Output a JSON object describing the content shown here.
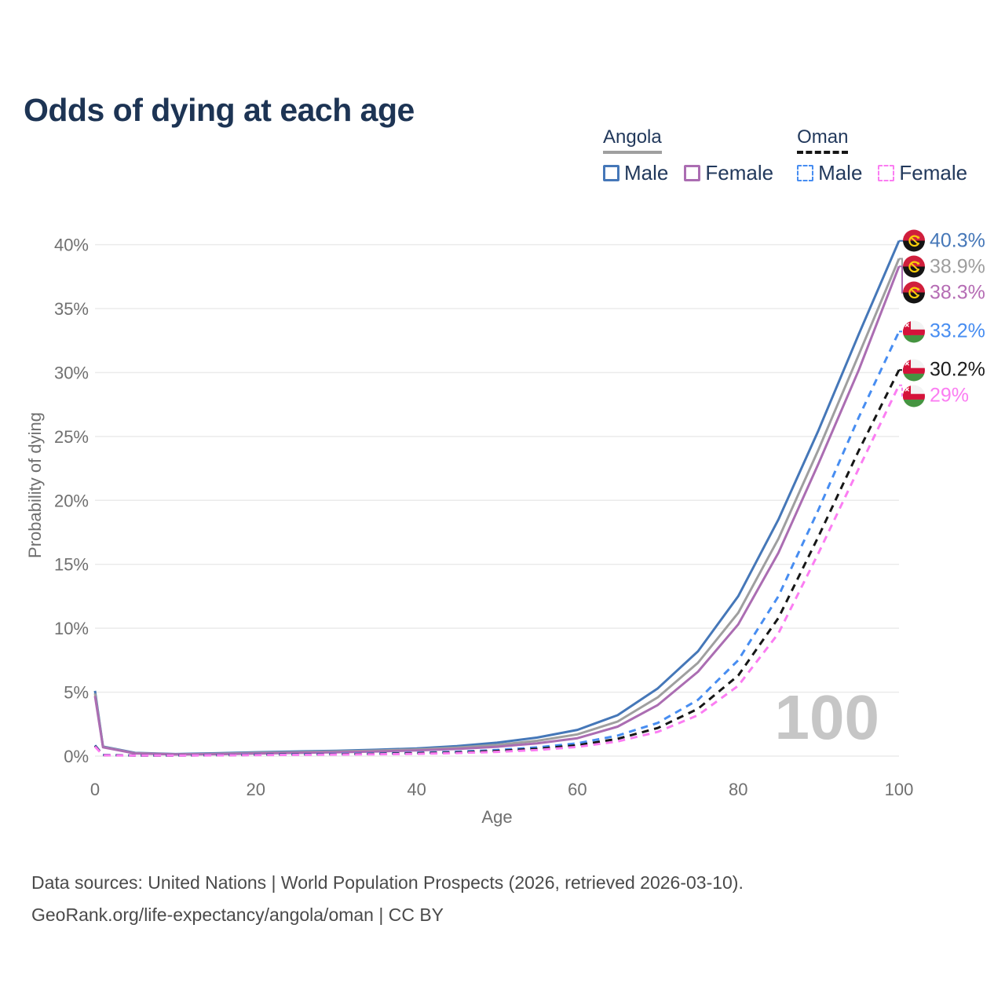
{
  "page": {
    "title": "Odds of dying at each age",
    "watermark": "100",
    "footer_line1": "Data sources: United Nations | World Population Prospects (2026, retrieved 2026-03-10).",
    "footer_line2": "GeoRank.org/life-expectancy/angola/oman | CC BY"
  },
  "legend": {
    "groups": [
      {
        "country": "Angola",
        "line_style": "solid",
        "line_color": "#9f9f9f",
        "items": [
          {
            "label": "Male",
            "color": "#4577b8"
          },
          {
            "label": "Female",
            "color": "#ab6db2"
          }
        ]
      },
      {
        "country": "Oman",
        "line_style": "dashed",
        "line_color": "#161616",
        "items": [
          {
            "label": "Male",
            "color": "#478df1"
          },
          {
            "label": "Female",
            "color": "#fb7df2"
          }
        ]
      }
    ]
  },
  "chart_data": {
    "type": "line",
    "title": "Odds of dying at each age",
    "xlabel": "Age",
    "ylabel": "Probability of dying",
    "xlim": [
      0,
      100
    ],
    "ylim": [
      0,
      40
    ],
    "x_ticks": [
      0,
      20,
      40,
      60,
      80,
      100
    ],
    "y_ticks": [
      0,
      5,
      10,
      15,
      20,
      25,
      30,
      35,
      40
    ],
    "y_tick_suffix": "%",
    "grid": "horizontal",
    "legend_position": "top-right",
    "x": [
      0,
      1,
      5,
      10,
      15,
      20,
      25,
      30,
      35,
      40,
      45,
      50,
      55,
      60,
      65,
      70,
      75,
      80,
      85,
      90,
      95,
      100
    ],
    "series": [
      {
        "name": "Angola Male",
        "country": "Angola",
        "style": "solid",
        "dash": false,
        "flag": "angola",
        "color": "#4577b8",
        "label_color": "#4577b8",
        "end_label": "40.3%",
        "values": [
          5.1,
          0.75,
          0.25,
          0.16,
          0.22,
          0.3,
          0.36,
          0.42,
          0.5,
          0.6,
          0.78,
          1.05,
          1.45,
          2.05,
          3.2,
          5.3,
          8.2,
          12.5,
          18.5,
          25.5,
          33.0,
          40.3
        ]
      },
      {
        "name": "Angola",
        "country": "Angola",
        "style": "solid",
        "dash": false,
        "flag": "angola",
        "color": "#9f9f9f",
        "label_color": "#9e9e9e",
        "end_label": "38.9%",
        "values": [
          4.9,
          0.72,
          0.23,
          0.14,
          0.18,
          0.25,
          0.3,
          0.36,
          0.43,
          0.52,
          0.66,
          0.88,
          1.2,
          1.7,
          2.7,
          4.6,
          7.3,
          11.2,
          17.0,
          24.0,
          31.4,
          38.9
        ]
      },
      {
        "name": "Angola Female",
        "country": "Angola",
        "style": "solid",
        "dash": false,
        "flag": "angola",
        "color": "#ab6db2",
        "label_color": "#b56cb4",
        "end_label": "38.3%",
        "values": [
          4.7,
          0.69,
          0.21,
          0.13,
          0.15,
          0.2,
          0.25,
          0.3,
          0.36,
          0.45,
          0.56,
          0.73,
          1.0,
          1.4,
          2.3,
          4.0,
          6.6,
          10.3,
          15.9,
          22.9,
          30.2,
          38.3
        ]
      },
      {
        "name": "Oman Male",
        "country": "Oman",
        "style": "dashed",
        "dash": true,
        "flag": "oman",
        "color": "#478df1",
        "label_color": "#478df1",
        "end_label": "33.2%",
        "values": [
          0.85,
          0.09,
          0.05,
          0.05,
          0.08,
          0.12,
          0.15,
          0.17,
          0.2,
          0.26,
          0.34,
          0.47,
          0.68,
          1.0,
          1.6,
          2.6,
          4.4,
          7.5,
          12.5,
          19.3,
          26.5,
          33.2
        ]
      },
      {
        "name": "Oman",
        "country": "Oman",
        "style": "dashed",
        "dash": true,
        "flag": "oman",
        "color": "#161616",
        "label_color": "#1b1b1b",
        "end_label": "30.2%",
        "values": [
          0.8,
          0.08,
          0.05,
          0.05,
          0.07,
          0.1,
          0.12,
          0.14,
          0.17,
          0.22,
          0.29,
          0.4,
          0.57,
          0.85,
          1.35,
          2.2,
          3.7,
          6.3,
          10.8,
          17.2,
          23.9,
          30.2
        ]
      },
      {
        "name": "Oman Female",
        "country": "Oman",
        "style": "dashed",
        "dash": true,
        "flag": "oman",
        "color": "#fb7df2",
        "label_color": "#fb7df2",
        "end_label": "29%",
        "values": [
          0.75,
          0.07,
          0.04,
          0.04,
          0.06,
          0.08,
          0.1,
          0.12,
          0.14,
          0.18,
          0.24,
          0.33,
          0.48,
          0.72,
          1.15,
          1.9,
          3.2,
          5.5,
          9.6,
          15.9,
          22.5,
          29.0
        ]
      }
    ]
  }
}
